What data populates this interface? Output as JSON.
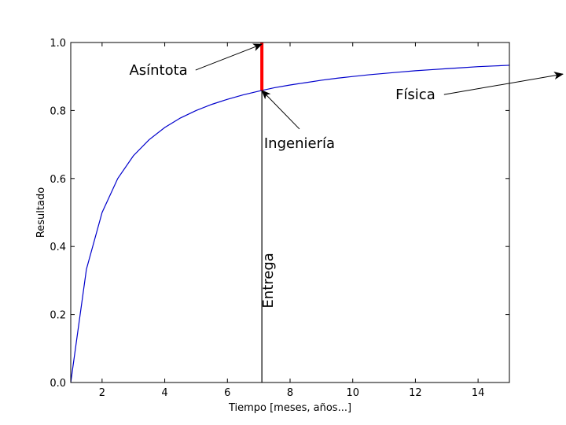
{
  "chart_data": {
    "type": "line",
    "title": "",
    "xlabel": "Tiempo [meses, años...]",
    "ylabel": "Resultado",
    "xlim": [
      1,
      15
    ],
    "ylim": [
      0,
      1
    ],
    "xticks": [
      2,
      4,
      6,
      8,
      10,
      12,
      14
    ],
    "yticks": [
      0.0,
      0.2,
      0.4,
      0.6,
      0.8,
      1.0
    ],
    "xtick_labels": [
      "2",
      "4",
      "6",
      "8",
      "10",
      "12",
      "14"
    ],
    "ytick_labels": [
      "0.0",
      "0.2",
      "0.4",
      "0.6",
      "0.8",
      "1.0"
    ],
    "grid": false,
    "series": [
      {
        "color": "#0000cc",
        "x": [
          1,
          1.5,
          2,
          2.5,
          3,
          3.5,
          4,
          4.5,
          5,
          5.5,
          6,
          6.5,
          7,
          7.5,
          8,
          8.5,
          9,
          9.5,
          10,
          10.5,
          11,
          11.5,
          12,
          12.5,
          13,
          13.5,
          14,
          14.5,
          15
        ],
        "y": [
          0.0,
          0.333,
          0.5,
          0.6,
          0.667,
          0.714,
          0.75,
          0.778,
          0.8,
          0.818,
          0.833,
          0.846,
          0.857,
          0.867,
          0.875,
          0.882,
          0.889,
          0.895,
          0.9,
          0.905,
          0.909,
          0.913,
          0.917,
          0.92,
          0.923,
          0.926,
          0.929,
          0.931,
          0.933
        ]
      }
    ],
    "vline": {
      "x": 7.1,
      "color": "#000000"
    },
    "asymptote_segment": {
      "x": 7.1,
      "y0": 0.859,
      "y1": 1.0,
      "color": "#ff0000"
    },
    "annotations": [
      {
        "text": "Asíntota",
        "target": [
          7.1,
          0.995
        ],
        "text_pos": [
          3.8,
          0.905
        ]
      },
      {
        "text": "Ingeniería",
        "target": [
          7.1,
          0.859
        ],
        "text_pos": [
          8.3,
          0.69
        ]
      },
      {
        "text": "Física",
        "target": [
          18.4,
          0.907
        ],
        "text_pos": [
          12.0,
          0.833
        ]
      },
      {
        "text": "Entrega",
        "rotated": true,
        "pos": [
          7.45,
          0.3
        ]
      }
    ]
  }
}
